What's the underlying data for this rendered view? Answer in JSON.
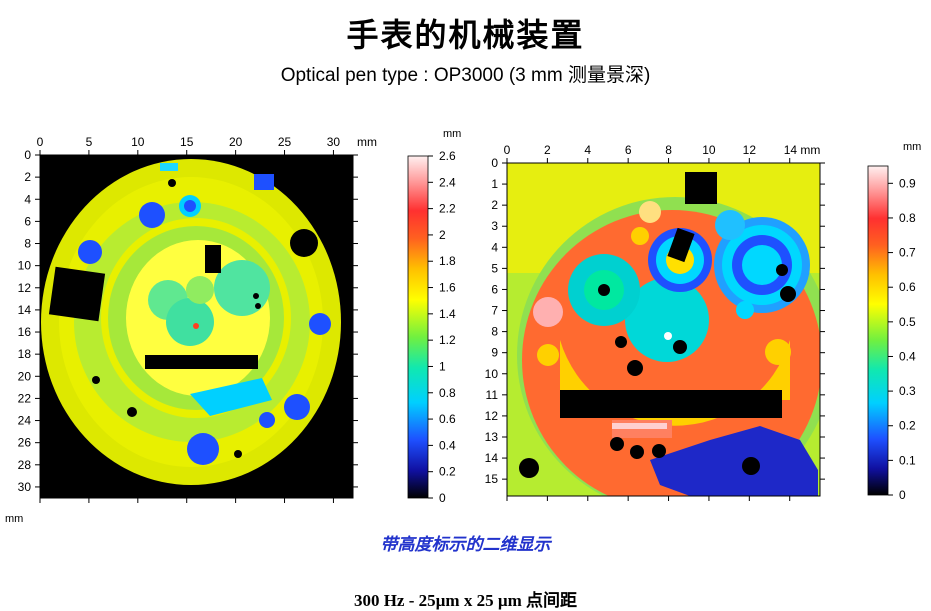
{
  "title": "手表的机械装置",
  "subtitle": "Optical pen type : OP3000 (3 mm 测量景深)",
  "caption": "带高度标示的二维显示",
  "footer": "300 Hz - 25µm x 25 µm 点间距",
  "chart_data": [
    {
      "type": "heatmap",
      "title": "",
      "x_unit": "mm",
      "y_unit": "mm",
      "xlim": [
        0,
        32
      ],
      "ylim": [
        0,
        31
      ],
      "x_ticks": [
        "0",
        "5",
        "10",
        "15",
        "20",
        "25",
        "30"
      ],
      "y_ticks": [
        "0",
        "2",
        "4",
        "6",
        "8",
        "10",
        "12",
        "14",
        "16",
        "18",
        "20",
        "22",
        "24",
        "26",
        "28",
        "30"
      ],
      "colorbar": {
        "unit": "mm",
        "range": [
          0,
          2.6
        ],
        "ticks": [
          "0",
          "0.2",
          "0.4",
          "0.6",
          "0.8",
          "1",
          "1.2",
          "1.4",
          "1.6",
          "1.8",
          "2",
          "2.2",
          "2.4",
          "2.6"
        ]
      }
    },
    {
      "type": "heatmap",
      "title": "",
      "x_unit": "mm",
      "y_unit": "",
      "xlim": [
        0,
        15.5
      ],
      "ylim": [
        0,
        15.8
      ],
      "x_ticks": [
        "0",
        "2",
        "4",
        "6",
        "8",
        "10",
        "12",
        "14 mm"
      ],
      "y_ticks": [
        "0",
        "1",
        "2",
        "3",
        "4",
        "5",
        "6",
        "7",
        "8",
        "9",
        "10",
        "11",
        "12",
        "13",
        "14",
        "15"
      ],
      "colorbar": {
        "unit": "mm",
        "range": [
          0,
          0.95
        ],
        "ticks": [
          "0",
          "0.1",
          "0.2",
          "0.3",
          "0.4",
          "0.5",
          "0.6",
          "0.7",
          "0.8",
          "0.9"
        ]
      }
    }
  ]
}
